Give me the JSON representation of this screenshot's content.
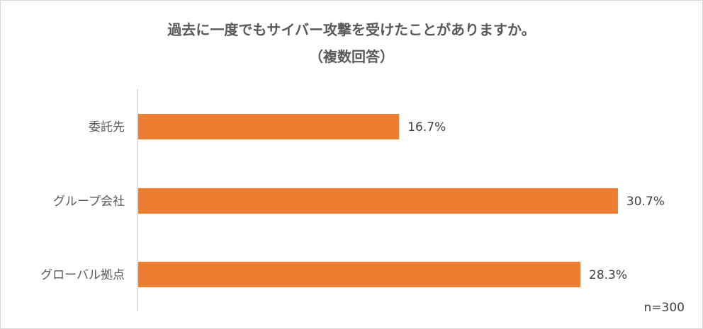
{
  "chart_data": {
    "type": "bar",
    "orientation": "horizontal",
    "title": "過去に一度でもサイバー攻撃を受けたことがありますか。",
    "subtitle": "（複数回答）",
    "categories": [
      "委託先",
      "グループ会社",
      "グローバル拠点"
    ],
    "values": [
      16.7,
      30.7,
      28.3
    ],
    "value_labels": [
      "16.7%",
      "30.7%",
      "28.3%"
    ],
    "bar_color": "#ED7D31",
    "grid": false,
    "legend": "none",
    "note": "n=300"
  }
}
